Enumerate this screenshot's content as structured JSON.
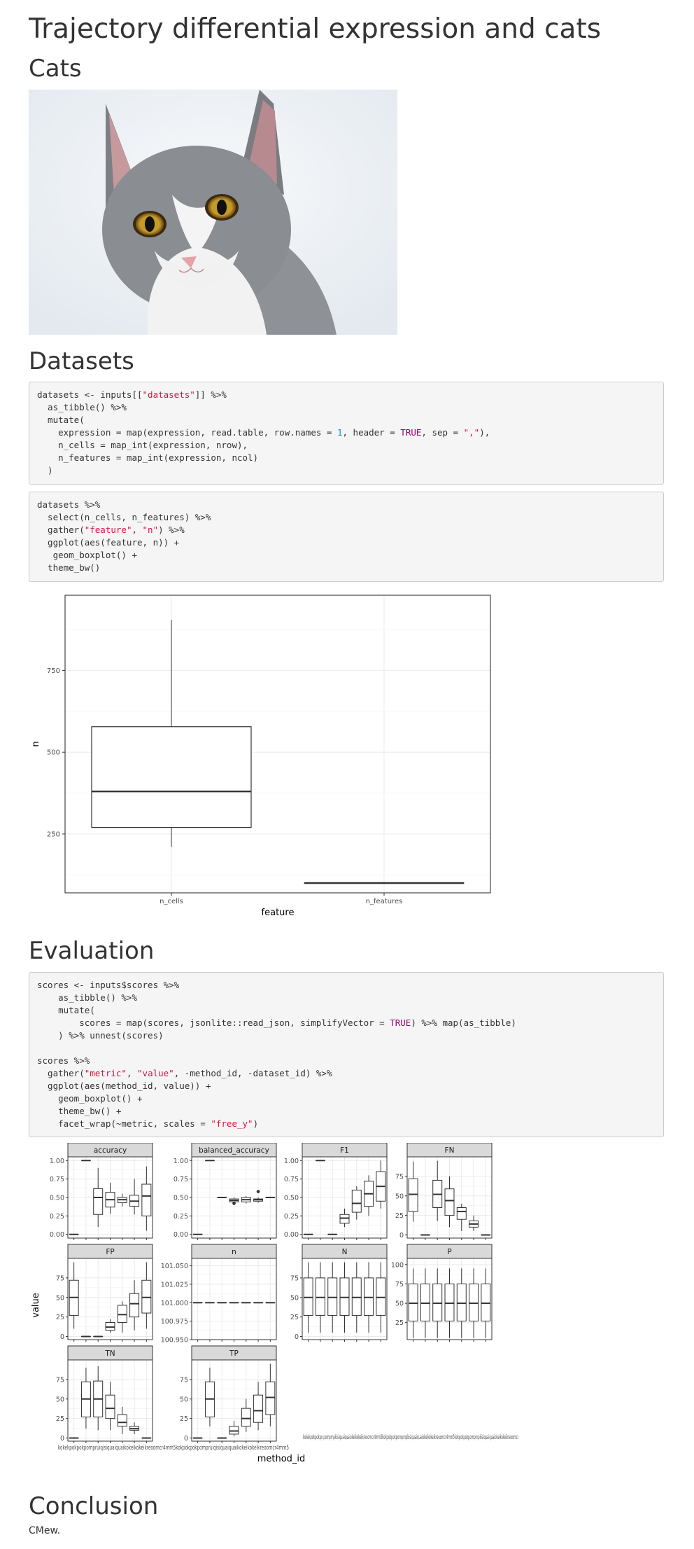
{
  "title": "Trajectory differential expression and cats",
  "sections": {
    "cats": "Cats",
    "datasets": "Datasets",
    "evaluation": "Evaluation",
    "conclusion": "Conclusion"
  },
  "conclusion_text": "CMew.",
  "code_blocks": {
    "datasets_load": [
      [
        {
          "t": "datasets <- inputs[["
        },
        {
          "t": "\"datasets\"",
          "c": "s"
        },
        {
          "t": "]] %>%"
        }
      ],
      [
        {
          "t": "  as_tibble() %>%"
        }
      ],
      [
        {
          "t": "  mutate("
        }
      ],
      [
        {
          "t": "    expression = map(expression, read.table, row.names = "
        },
        {
          "t": "1",
          "c": "n"
        },
        {
          "t": ", header = "
        },
        {
          "t": "TRUE",
          "c": "k"
        },
        {
          "t": ", sep = "
        },
        {
          "t": "\",\"",
          "c": "s"
        },
        {
          "t": "),"
        }
      ],
      [
        {
          "t": "    n_cells = map_int(expression, nrow),"
        }
      ],
      [
        {
          "t": "    n_features = map_int(expression, ncol)"
        }
      ],
      [
        {
          "t": "  )"
        }
      ]
    ],
    "datasets_plot": [
      [
        {
          "t": "datasets %>%"
        }
      ],
      [
        {
          "t": "  select(n_cells, n_features) %>%"
        }
      ],
      [
        {
          "t": "  gather("
        },
        {
          "t": "\"feature\"",
          "c": "s"
        },
        {
          "t": ", "
        },
        {
          "t": "\"n\"",
          "c": "s"
        },
        {
          "t": ") %>%"
        }
      ],
      [
        {
          "t": "  ggplot(aes(feature, n)) +"
        }
      ],
      [
        {
          "t": "   geom_boxplot() +"
        }
      ],
      [
        {
          "t": "  theme_bw()"
        }
      ]
    ],
    "evaluation": [
      [
        {
          "t": "scores <- inputs$scores %>%"
        }
      ],
      [
        {
          "t": "    as_tibble() %>%"
        }
      ],
      [
        {
          "t": "    mutate("
        }
      ],
      [
        {
          "t": "        scores = map(scores, jsonlite::read_json, simplifyVector = "
        },
        {
          "t": "TRUE",
          "c": "k"
        },
        {
          "t": ") %>% map(as_tibble)"
        }
      ],
      [
        {
          "t": "    ) %>% unnest(scores)"
        }
      ],
      [
        {
          "t": ""
        }
      ],
      [
        {
          "t": "scores %>%"
        }
      ],
      [
        {
          "t": "  gather("
        },
        {
          "t": "\"metric\"",
          "c": "s"
        },
        {
          "t": ", "
        },
        {
          "t": "\"value\"",
          "c": "s"
        },
        {
          "t": ", -method_id, -dataset_id) %>%"
        }
      ],
      [
        {
          "t": "  ggplot(aes(method_id, value)) +"
        }
      ],
      [
        {
          "t": "    geom_boxplot() +"
        }
      ],
      [
        {
          "t": "    theme_bw() +"
        }
      ],
      [
        {
          "t": "    facet_wrap(~metric, scales = "
        },
        {
          "t": "\"free_y\"",
          "c": "s"
        },
        {
          "t": ")"
        }
      ]
    ]
  },
  "chart_data": [
    {
      "type": "box",
      "xlabel": "feature",
      "ylabel": "n",
      "categories": [
        "n_cells",
        "n_features"
      ],
      "ylim": [
        70,
        980
      ],
      "yticks": [
        250,
        500,
        750
      ],
      "boxes": [
        {
          "category": "n_cells",
          "min": 210,
          "q1": 270,
          "median": 380,
          "q3": 578,
          "max": 905
        },
        {
          "category": "n_features",
          "min": 100,
          "q1": 100,
          "median": 100,
          "q3": 100,
          "max": 100
        }
      ]
    },
    {
      "type": "box",
      "xlabel": "method_id",
      "ylabel": "value",
      "facets": [
        {
          "name": "accuracy",
          "ylim": [
            -0.05,
            1.05
          ],
          "yticks": [
            "0.00",
            "0.25",
            "0.50",
            "0.75",
            "1.00"
          ],
          "tickvals": [
            0,
            0.25,
            0.5,
            0.75,
            1.0
          ],
          "boxes": [
            [
              0,
              0,
              0,
              0,
              0
            ],
            [
              1,
              1,
              1,
              1,
              1
            ],
            [
              0.1,
              0.27,
              0.5,
              0.62,
              0.9
            ],
            [
              0.28,
              0.37,
              0.47,
              0.57,
              0.7
            ],
            [
              0.38,
              0.43,
              0.47,
              0.5,
              0.55
            ],
            [
              0.27,
              0.38,
              0.45,
              0.53,
              0.75
            ],
            [
              0.05,
              0.25,
              0.52,
              0.68,
              0.92
            ]
          ]
        },
        {
          "name": "balanced_accuracy",
          "ylim": [
            -0.05,
            1.05
          ],
          "yticks": [
            "0.00",
            "0.25",
            "0.50",
            "0.75",
            "1.00"
          ],
          "tickvals": [
            0,
            0.25,
            0.5,
            0.75,
            1.0
          ],
          "boxes": [
            [
              0,
              0,
              0,
              0,
              0
            ],
            [
              1,
              1,
              1,
              1,
              1
            ],
            [
              0.5,
              0.5,
              0.5,
              0.5,
              0.5
            ],
            [
              0.41,
              0.44,
              0.46,
              0.48,
              0.5
            ],
            [
              0.42,
              0.44,
              0.47,
              0.5,
              0.52
            ],
            [
              0.43,
              0.45,
              0.47,
              0.48,
              0.5
            ],
            [
              0.5,
              0.5,
              0.5,
              0.5,
              0.5
            ]
          ],
          "outliers": [
            [
              3,
              0.42
            ],
            [
              5,
              0.58
            ]
          ]
        },
        {
          "name": "F1",
          "ylim": [
            -0.05,
            1.05
          ],
          "yticks": [
            "0.00",
            "0.25",
            "0.50",
            "0.75",
            "1.00"
          ],
          "tickvals": [
            0,
            0.25,
            0.5,
            0.75,
            1.0
          ],
          "boxes": [
            [
              0,
              0,
              0,
              0,
              0
            ],
            [
              1,
              1,
              1,
              1,
              1
            ],
            [
              0,
              0,
              0,
              0,
              0
            ],
            [
              0.1,
              0.15,
              0.22,
              0.27,
              0.35
            ],
            [
              0.2,
              0.3,
              0.42,
              0.6,
              0.65
            ],
            [
              0.25,
              0.38,
              0.55,
              0.72,
              0.8
            ],
            [
              0.35,
              0.45,
              0.65,
              0.85,
              1.0
            ]
          ]
        },
        {
          "name": "FN",
          "ylim": [
            -4,
            100
          ],
          "yticks": [
            "0",
            "25",
            "50",
            "75"
          ],
          "tickvals": [
            0,
            25,
            50,
            75
          ],
          "boxes": [
            [
              17,
              30,
              52,
              72,
              94
            ],
            [
              0,
              0,
              0,
              0,
              0
            ],
            [
              18,
              35,
              52,
              70,
              95
            ],
            [
              10,
              25,
              44,
              59,
              75
            ],
            [
              5,
              20,
              30,
              35,
              40
            ],
            [
              5,
              10,
              14,
              18,
              25
            ],
            [
              0,
              0,
              0,
              0,
              0
            ]
          ]
        },
        {
          "name": "FP",
          "ylim": [
            -4,
            100
          ],
          "yticks": [
            "0",
            "25",
            "50",
            "75"
          ],
          "tickvals": [
            0,
            25,
            50,
            75
          ],
          "boxes": [
            [
              10,
              27,
              50,
              72,
              95
            ],
            [
              0,
              0,
              0,
              0,
              0
            ],
            [
              0,
              0,
              0,
              0,
              0
            ],
            [
              5,
              8,
              12,
              18,
              22
            ],
            [
              5,
              18,
              28,
              40,
              45
            ],
            [
              8,
              25,
              42,
              55,
              72
            ],
            [
              10,
              30,
              50,
              72,
              95
            ]
          ]
        },
        {
          "name": "n",
          "ylim": [
            100.95,
            101.06
          ],
          "yticks": [
            "100.950",
            "100.975",
            "101.000",
            "101.025",
            "101.050"
          ],
          "tickvals": [
            100.95,
            100.975,
            101.0,
            101.025,
            101.05
          ],
          "boxes": [
            [
              101,
              101,
              101,
              101,
              101
            ],
            [
              101,
              101,
              101,
              101,
              101
            ],
            [
              101,
              101,
              101,
              101,
              101
            ],
            [
              101,
              101,
              101,
              101,
              101
            ],
            [
              101,
              101,
              101,
              101,
              101
            ],
            [
              101,
              101,
              101,
              101,
              101
            ],
            [
              101,
              101,
              101,
              101,
              101
            ]
          ]
        },
        {
          "name": "N",
          "ylim": [
            -4,
            100
          ],
          "yticks": [
            "0",
            "25",
            "50",
            "75"
          ],
          "tickvals": [
            0,
            25,
            50,
            75
          ],
          "boxes": [
            [
              5,
              27,
              50,
              75,
              95
            ],
            [
              5,
              27,
              50,
              75,
              95
            ],
            [
              5,
              27,
              50,
              75,
              95
            ],
            [
              5,
              27,
              50,
              75,
              95
            ],
            [
              5,
              27,
              50,
              75,
              95
            ],
            [
              5,
              27,
              50,
              75,
              95
            ],
            [
              5,
              27,
              50,
              75,
              95
            ]
          ]
        },
        {
          "name": "P",
          "ylim": [
            3,
            108
          ],
          "yticks": [
            "25",
            "50",
            "75",
            "100"
          ],
          "tickvals": [
            25,
            50,
            75,
            100
          ],
          "boxes": [
            [
              5,
              27,
              50,
              75,
              95
            ],
            [
              5,
              27,
              50,
              75,
              95
            ],
            [
              5,
              27,
              50,
              75,
              95
            ],
            [
              5,
              27,
              50,
              75,
              95
            ],
            [
              5,
              27,
              50,
              75,
              95
            ],
            [
              5,
              27,
              50,
              75,
              95
            ],
            [
              5,
              27,
              50,
              75,
              95
            ]
          ]
        },
        {
          "name": "TN",
          "ylim": [
            -4,
            100
          ],
          "yticks": [
            "0",
            "25",
            "50",
            "75"
          ],
          "tickvals": [
            0,
            25,
            50,
            75
          ],
          "boxes": [
            [
              0,
              0,
              0,
              0,
              0
            ],
            [
              12,
              27,
              50,
              72,
              90
            ],
            [
              10,
              27,
              50,
              73,
              92
            ],
            [
              10,
              25,
              38,
              55,
              72
            ],
            [
              5,
              15,
              20,
              30,
              40
            ],
            [
              5,
              10,
              12,
              15,
              20
            ],
            [
              0,
              0,
              0,
              0,
              0
            ]
          ]
        },
        {
          "name": "TP",
          "ylim": [
            -4,
            100
          ],
          "yticks": [
            "0",
            "25",
            "50",
            "75"
          ],
          "tickvals": [
            0,
            25,
            50,
            75
          ],
          "boxes": [
            [
              0,
              0,
              0,
              0,
              0
            ],
            [
              15,
              27,
              50,
              72,
              90
            ],
            [
              0,
              0,
              0,
              0,
              0
            ],
            [
              2,
              5,
              9,
              15,
              22
            ],
            [
              8,
              15,
              25,
              38,
              50
            ],
            [
              10,
              20,
              35,
              55,
              72
            ],
            [
              15,
              30,
              52,
              72,
              95
            ]
          ]
        }
      ],
      "xtick_text": {
        "row2": "kokekpokpokpo pomprnpkisiquaiquaiokeikokeikreoomcr4mm5kokpokpokpomprnpkisiquaiquaiokeikokeikreoomcr4mm5kokpokpokpomprnpkisiquaiquaiokeikokeikreoomcr4mm5",
        "row3": "kokekpokpokpompruiqisiquaiquaikokeikokeikreoomcr4mm5kokpokpokpompruiqisiquaiquaikokeikokeikreoomcr4mm5"
      }
    }
  ]
}
